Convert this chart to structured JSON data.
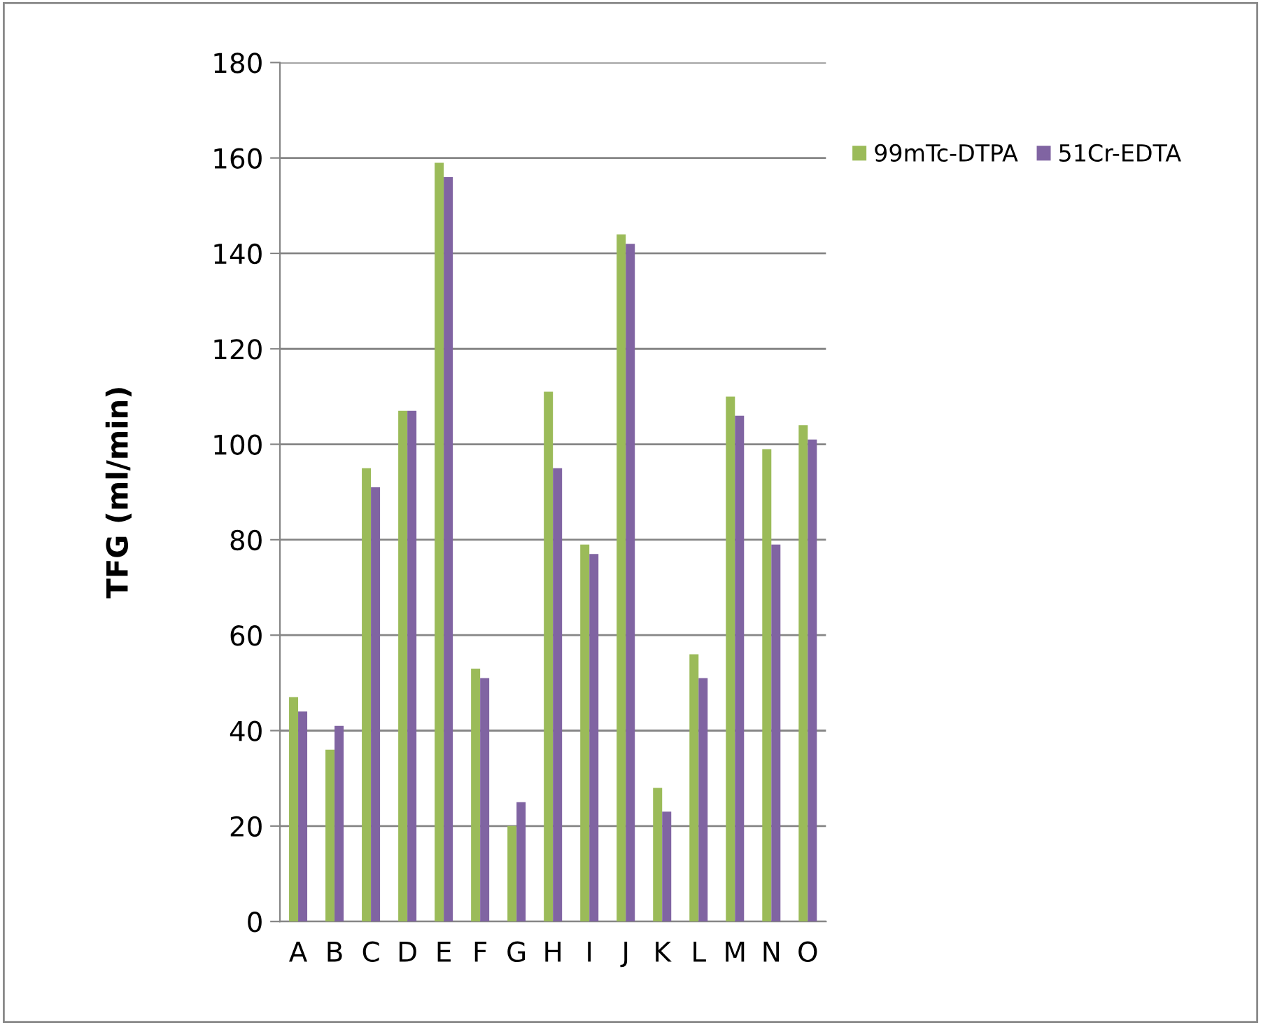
{
  "chart_data": {
    "type": "bar",
    "ylabel": "TFG (ml/min)",
    "categories": [
      "A",
      "B",
      "C",
      "D",
      "E",
      "F",
      "G",
      "H",
      "I",
      "J",
      "K",
      "L",
      "M",
      "N",
      "O"
    ],
    "series": [
      {
        "name": "99mTc-DTPA",
        "color": "#9bbb59",
        "values": [
          47,
          36,
          95,
          107,
          159,
          53,
          20,
          111,
          79,
          144,
          28,
          56,
          110,
          99,
          104
        ]
      },
      {
        "name": "51Cr-EDTA",
        "color": "#8064a2",
        "values": [
          44,
          41,
          91,
          107,
          156,
          51,
          25,
          95,
          77,
          142,
          23,
          51,
          106,
          79,
          101
        ]
      }
    ],
    "ylim": [
      0,
      180
    ],
    "yticks": [
      0,
      20,
      40,
      60,
      80,
      100,
      120,
      140,
      160,
      180
    ],
    "grid": "y",
    "legend": "right"
  }
}
